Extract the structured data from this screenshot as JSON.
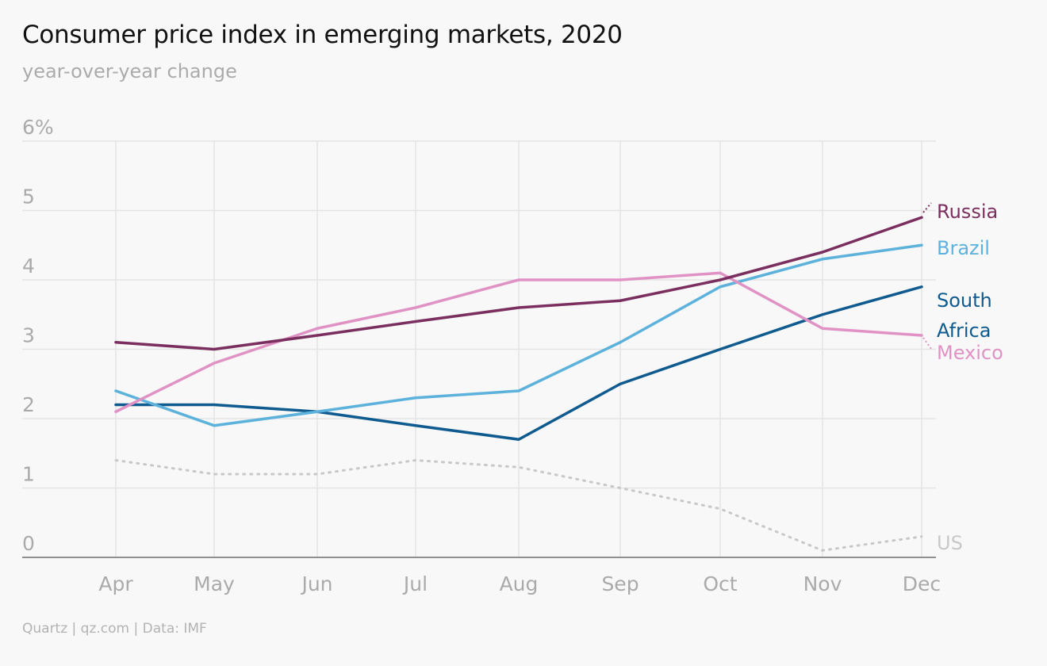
{
  "title": "Consumer price index in emerging markets, 2020",
  "subtitle": "year-over-year change",
  "source": "Quartz | qz.com | Data: IMF",
  "chart_data": {
    "type": "line",
    "title": "Consumer price index in emerging markets, 2020",
    "subtitle": "year-over-year change",
    "x": [
      "Apr",
      "May",
      "Jun",
      "Jul",
      "Aug",
      "Sep",
      "Oct",
      "Nov",
      "Dec"
    ],
    "y_ticks": [
      "0",
      "1",
      "2",
      "3",
      "4",
      "5",
      "6%"
    ],
    "ylim": [
      0,
      6
    ],
    "grid": true,
    "legend": "direct labels at right end of lines",
    "series": [
      {
        "name": "US",
        "color": "#c8c8c8",
        "style": "dotted",
        "values": [
          1.4,
          1.2,
          1.2,
          1.4,
          1.3,
          1.0,
          0.7,
          0.1,
          0.3
        ]
      },
      {
        "name": "South Africa",
        "color": "#0f5a8e",
        "style": "solid",
        "values": [
          2.2,
          2.2,
          2.1,
          1.9,
          1.7,
          2.5,
          3.0,
          3.5,
          3.9
        ]
      },
      {
        "name": "Brazil",
        "color": "#5db2dc",
        "style": "solid",
        "values": [
          2.4,
          1.9,
          2.1,
          2.3,
          2.4,
          3.1,
          3.9,
          4.3,
          4.5
        ]
      },
      {
        "name": "Mexico",
        "color": "#e092c5",
        "style": "solid",
        "values": [
          2.1,
          2.8,
          3.3,
          3.6,
          4.0,
          4.0,
          4.1,
          3.3,
          3.2
        ]
      },
      {
        "name": "Russia",
        "color": "#7b2f5f",
        "style": "solid",
        "values": [
          3.1,
          3.0,
          3.2,
          3.4,
          3.6,
          3.7,
          4.0,
          4.4,
          4.9
        ]
      }
    ],
    "labels": [
      {
        "series": "Russia",
        "lines": [
          "Russia"
        ],
        "color": "#7b2f5f"
      },
      {
        "series": "Brazil",
        "lines": [
          "Brazil"
        ],
        "color": "#5db2dc"
      },
      {
        "series": "South Africa",
        "lines": [
          "South",
          "Africa"
        ],
        "color": "#0f5a8e"
      },
      {
        "series": "Mexico",
        "lines": [
          "Mexico"
        ],
        "color": "#e092c5"
      },
      {
        "series": "US",
        "lines": [
          "US"
        ],
        "color": "#c8c8c8"
      }
    ]
  }
}
